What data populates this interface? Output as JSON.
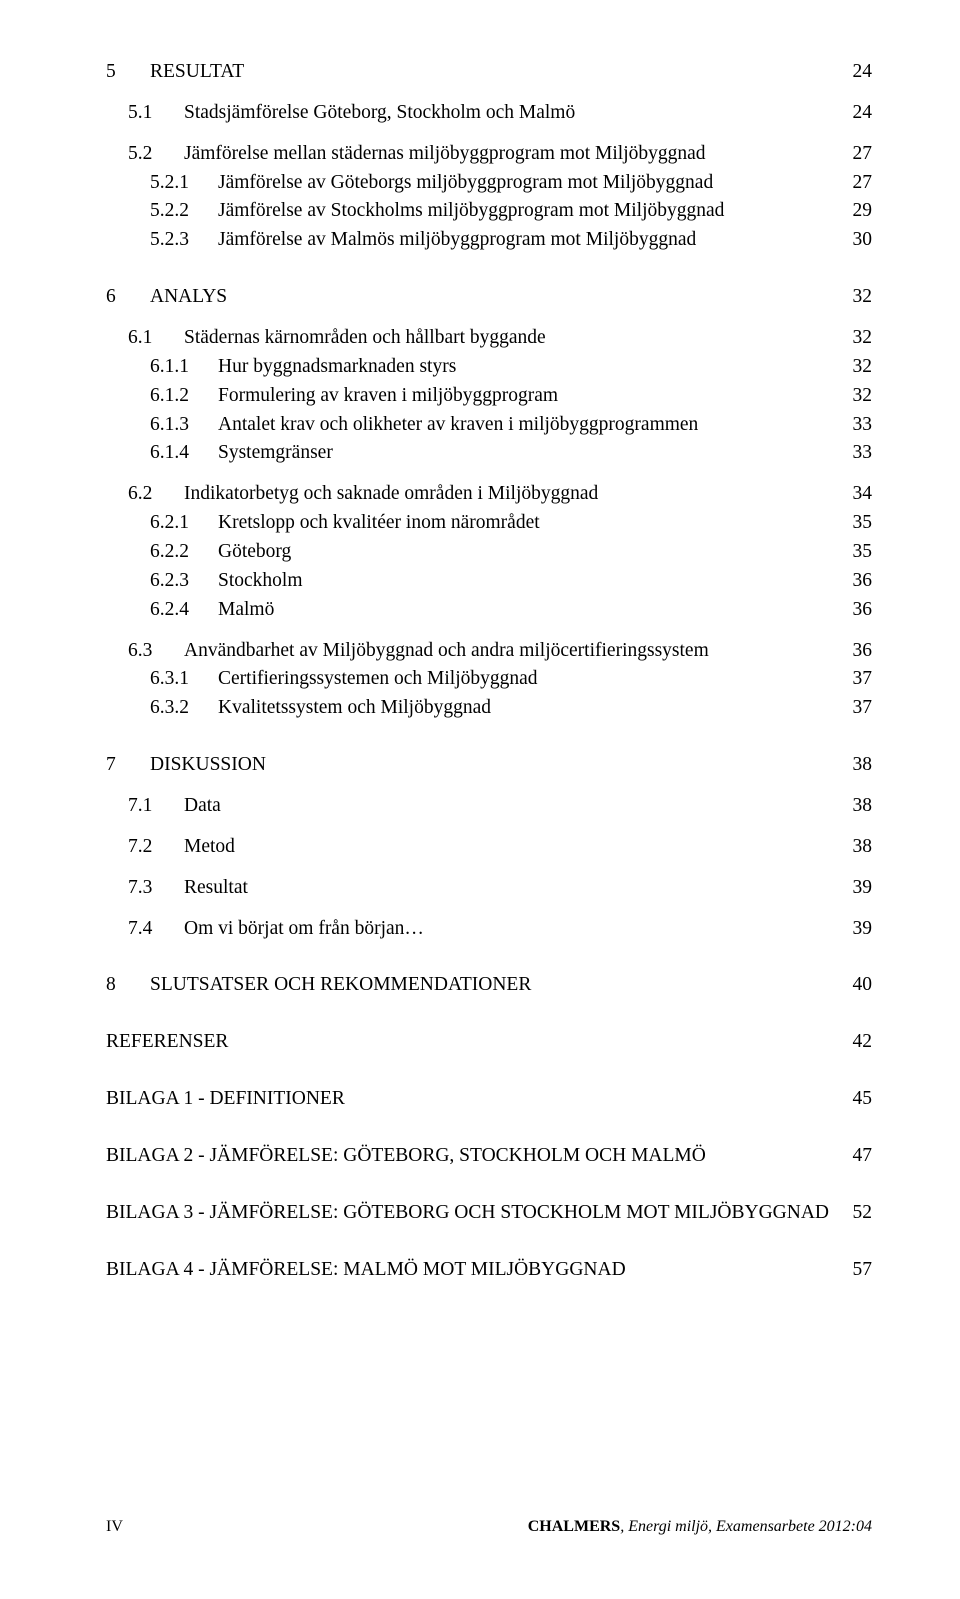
{
  "toc": [
    {
      "level": 0,
      "num": "5",
      "label": "RESULTAT",
      "page": "24",
      "gap": "none"
    },
    {
      "level": 1,
      "num": "5.1",
      "label": "Stadsjämförelse Göteborg, Stockholm och Malmö",
      "page": "24",
      "gap": "section"
    },
    {
      "level": 1,
      "num": "5.2",
      "label": "Jämförelse mellan städernas miljöbyggprogram mot Miljöbyggnad",
      "page": "27",
      "gap": "section"
    },
    {
      "level": 2,
      "num": "5.2.1",
      "label": "Jämförelse av Göteborgs miljöbyggprogram mot Miljöbyggnad",
      "page": "27",
      "gap": "none"
    },
    {
      "level": 2,
      "num": "5.2.2",
      "label": "Jämförelse av Stockholms miljöbyggprogram mot Miljöbyggnad",
      "page": "29",
      "gap": "none"
    },
    {
      "level": 2,
      "num": "5.2.3",
      "label": "Jämförelse av Malmös miljöbyggprogram mot Miljöbyggnad",
      "page": "30",
      "gap": "none"
    },
    {
      "level": 0,
      "num": "6",
      "label": "ANALYS",
      "page": "32",
      "gap": "major"
    },
    {
      "level": 1,
      "num": "6.1",
      "label": "Städernas kärnområden och hållbart byggande",
      "page": "32",
      "gap": "section"
    },
    {
      "level": 2,
      "num": "6.1.1",
      "label": "Hur byggnadsmarknaden styrs",
      "page": "32",
      "gap": "none"
    },
    {
      "level": 2,
      "num": "6.1.2",
      "label": "Formulering av kraven i miljöbyggprogram",
      "page": "32",
      "gap": "none"
    },
    {
      "level": 2,
      "num": "6.1.3",
      "label": "Antalet krav och olikheter av kraven i miljöbyggprogrammen",
      "page": "33",
      "gap": "none"
    },
    {
      "level": 2,
      "num": "6.1.4",
      "label": "Systemgränser",
      "page": "33",
      "gap": "none"
    },
    {
      "level": 1,
      "num": "6.2",
      "label": "Indikatorbetyg och saknade områden i Miljöbyggnad",
      "page": "34",
      "gap": "section"
    },
    {
      "level": 2,
      "num": "6.2.1",
      "label": "Kretslopp och kvalitéer inom närområdet",
      "page": "35",
      "gap": "none"
    },
    {
      "level": 2,
      "num": "6.2.2",
      "label": "Göteborg",
      "page": "35",
      "gap": "none"
    },
    {
      "level": 2,
      "num": "6.2.3",
      "label": "Stockholm",
      "page": "36",
      "gap": "none"
    },
    {
      "level": 2,
      "num": "6.2.4",
      "label": "Malmö",
      "page": "36",
      "gap": "none"
    },
    {
      "level": 1,
      "num": "6.3",
      "label": "Användbarhet av Miljöbyggnad och andra miljöcertifieringssystem",
      "page": "36",
      "gap": "section"
    },
    {
      "level": 2,
      "num": "6.3.1",
      "label": "Certifieringssystemen och Miljöbyggnad",
      "page": "37",
      "gap": "none"
    },
    {
      "level": 2,
      "num": "6.3.2",
      "label": "Kvalitetssystem och Miljöbyggnad",
      "page": "37",
      "gap": "none"
    },
    {
      "level": 0,
      "num": "7",
      "label": "DISKUSSION",
      "page": "38",
      "gap": "major"
    },
    {
      "level": 1,
      "num": "7.1",
      "label": "Data",
      "page": "38",
      "gap": "section"
    },
    {
      "level": 1,
      "num": "7.2",
      "label": "Metod",
      "page": "38",
      "gap": "section"
    },
    {
      "level": 1,
      "num": "7.3",
      "label": "Resultat",
      "page": "39",
      "gap": "section"
    },
    {
      "level": 1,
      "num": "7.4",
      "label": "Om vi börjat om från början…",
      "page": "39",
      "gap": "section"
    },
    {
      "level": 0,
      "num": "8",
      "label": "SLUTSATSER OCH REKOMMENDATIONER",
      "page": "40",
      "gap": "major"
    },
    {
      "level": 0,
      "num": "",
      "label": "REFERENSER",
      "page": "42",
      "gap": "major"
    },
    {
      "level": 0,
      "num": "",
      "label": "BILAGA 1 - DEFINITIONER",
      "page": "45",
      "gap": "major"
    },
    {
      "level": 0,
      "num": "",
      "label": "BILAGA 2 - JÄMFÖRELSE: GÖTEBORG, STOCKHOLM OCH MALMÖ",
      "page": "47",
      "gap": "major"
    },
    {
      "level": 0,
      "num": "",
      "label": "BILAGA 3 - JÄMFÖRELSE: GÖTEBORG OCH STOCKHOLM MOT MILJÖBYGGNAD",
      "page": "52",
      "gap": "major"
    },
    {
      "level": 0,
      "num": "",
      "label": "BILAGA 4 - JÄMFÖRELSE: MALMÖ MOT MILJÖBYGGNAD",
      "page": "57",
      "gap": "major"
    }
  ],
  "footer": {
    "page_roman": "IV",
    "publisher": "CHALMERS",
    "series": ", Energi miljö, Examensarbete 2012:04"
  }
}
